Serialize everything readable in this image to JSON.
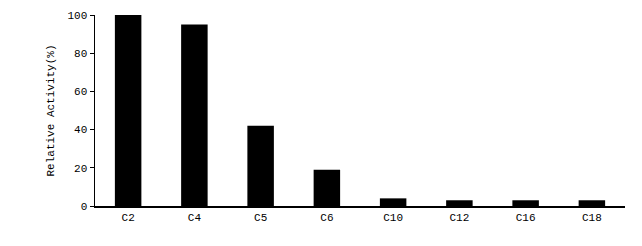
{
  "chart_data": {
    "type": "bar",
    "y_label": "Relative Activity(%)",
    "categories": [
      "C2",
      "C4",
      "C5",
      "C6",
      "C10",
      "C12",
      "C16",
      "C18"
    ],
    "values": [
      100,
      95,
      42,
      19,
      4,
      3,
      3,
      3
    ],
    "color": "#000000",
    "ylim": [
      0,
      100
    ],
    "yticks": [
      0,
      20,
      40,
      60,
      80,
      100
    ],
    "grid": false
  }
}
